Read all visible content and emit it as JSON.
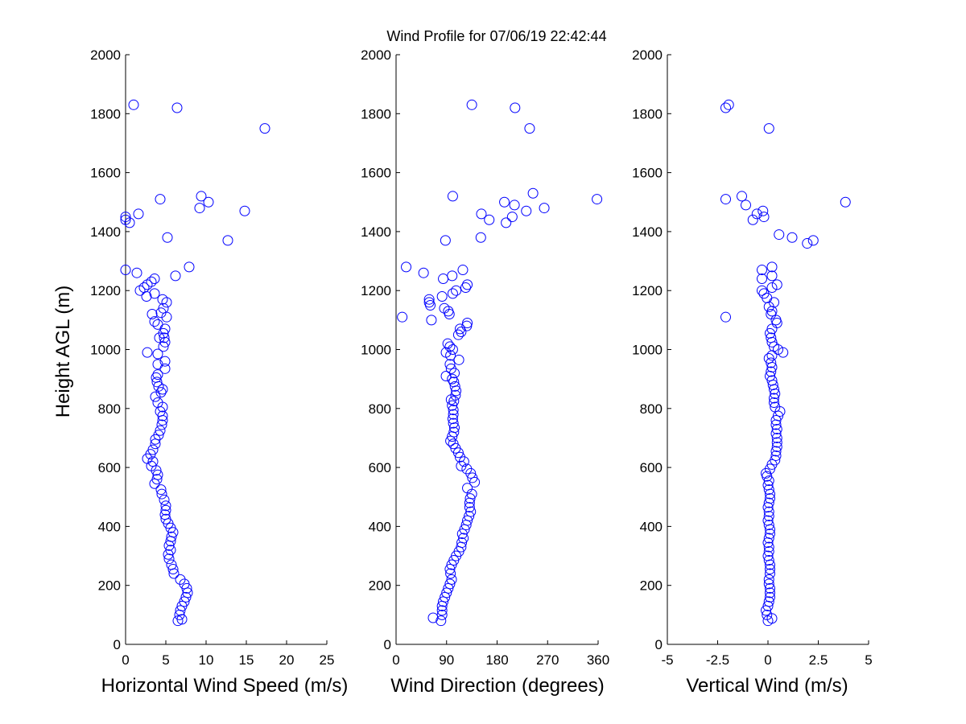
{
  "figure": {
    "title": "Wind Profile for  07/06/19 22:42:44",
    "ylabel": "Height AGL (m)",
    "marker_color": "#0000ff"
  },
  "chart_data": [
    {
      "type": "scatter",
      "xlabel": "Horizontal Wind Speed (m/s)",
      "xlim": [
        0,
        25
      ],
      "ylim": [
        0,
        2000
      ],
      "xticks": [
        0,
        5,
        10,
        15,
        20,
        25
      ],
      "xtick_labels": [
        "0",
        "5",
        "10",
        "15",
        "20",
        "25"
      ],
      "yticks": [
        0,
        200,
        400,
        600,
        800,
        1000,
        1200,
        1400,
        1600,
        1800,
        2000
      ],
      "ytick_labels": [
        "0",
        "200",
        "400",
        "600",
        "800",
        "1000",
        "1200",
        "1400",
        "1600",
        "1800",
        "2000"
      ],
      "grid": false,
      "points": [
        [
          6.5,
          80
        ],
        [
          7.0,
          85
        ],
        [
          6.7,
          100
        ],
        [
          6.8,
          115
        ],
        [
          7.0,
          130
        ],
        [
          7.3,
          145
        ],
        [
          7.5,
          160
        ],
        [
          7.7,
          175
        ],
        [
          7.6,
          190
        ],
        [
          7.3,
          205
        ],
        [
          6.8,
          220
        ],
        [
          6.0,
          240
        ],
        [
          5.9,
          255
        ],
        [
          5.7,
          270
        ],
        [
          5.4,
          290
        ],
        [
          5.3,
          305
        ],
        [
          5.6,
          320
        ],
        [
          5.4,
          335
        ],
        [
          5.6,
          350
        ],
        [
          5.7,
          365
        ],
        [
          5.9,
          380
        ],
        [
          5.6,
          395
        ],
        [
          5.3,
          410
        ],
        [
          5.0,
          425
        ],
        [
          4.9,
          440
        ],
        [
          5.0,
          455
        ],
        [
          5.0,
          470
        ],
        [
          4.8,
          490
        ],
        [
          4.5,
          510
        ],
        [
          4.4,
          525
        ],
        [
          3.6,
          545
        ],
        [
          3.9,
          560
        ],
        [
          4.0,
          575
        ],
        [
          3.8,
          590
        ],
        [
          3.2,
          605
        ],
        [
          3.4,
          620
        ],
        [
          2.7,
          630
        ],
        [
          3.1,
          645
        ],
        [
          3.4,
          660
        ],
        [
          3.7,
          680
        ],
        [
          3.7,
          695
        ],
        [
          4.1,
          710
        ],
        [
          4.3,
          725
        ],
        [
          4.5,
          745
        ],
        [
          4.6,
          760
        ],
        [
          4.6,
          775
        ],
        [
          4.3,
          790
        ],
        [
          4.6,
          805
        ],
        [
          4.0,
          820
        ],
        [
          3.7,
          840
        ],
        [
          4.4,
          855
        ],
        [
          4.6,
          865
        ],
        [
          4.1,
          875
        ],
        [
          3.9,
          890
        ],
        [
          3.8,
          905
        ],
        [
          4.0,
          915
        ],
        [
          4.9,
          935
        ],
        [
          4.0,
          950
        ],
        [
          4.9,
          960
        ],
        [
          4.0,
          985
        ],
        [
          2.7,
          990
        ],
        [
          4.7,
          1010
        ],
        [
          4.9,
          1025
        ],
        [
          4.8,
          1040
        ],
        [
          4.2,
          1040
        ],
        [
          4.7,
          1055
        ],
        [
          4.9,
          1070
        ],
        [
          4.0,
          1085
        ],
        [
          3.6,
          1095
        ],
        [
          5.1,
          1110
        ],
        [
          3.3,
          1120
        ],
        [
          4.4,
          1125
        ],
        [
          4.7,
          1140
        ],
        [
          5.1,
          1160
        ],
        [
          4.6,
          1170
        ],
        [
          2.6,
          1180
        ],
        [
          3.6,
          1190
        ],
        [
          1.8,
          1200
        ],
        [
          2.3,
          1210
        ],
        [
          2.7,
          1220
        ],
        [
          3.2,
          1230
        ],
        [
          3.6,
          1240
        ],
        [
          6.2,
          1250
        ],
        [
          1.4,
          1260
        ],
        [
          0,
          1270
        ],
        [
          7.9,
          1280
        ],
        [
          12.7,
          1370
        ],
        [
          5.2,
          1380
        ],
        [
          0.5,
          1430
        ],
        [
          0,
          1440
        ],
        [
          0,
          1450
        ],
        [
          1.6,
          1460
        ],
        [
          14.8,
          1470
        ],
        [
          9.2,
          1480
        ],
        [
          10.3,
          1500
        ],
        [
          4.3,
          1510
        ],
        [
          9.4,
          1520
        ],
        [
          17.3,
          1750
        ],
        [
          1.0,
          1830
        ],
        [
          6.4,
          1820
        ]
      ]
    },
    {
      "type": "scatter",
      "xlabel": "Wind Direction (degrees)",
      "xlim": [
        0,
        360
      ],
      "ylim": [
        0,
        2000
      ],
      "xticks": [
        0,
        90,
        180,
        270,
        360
      ],
      "xtick_labels": [
        "0",
        "90",
        "180",
        "270",
        "360"
      ],
      "yticks": [
        0,
        200,
        400,
        600,
        800,
        1000,
        1200,
        1400,
        1600,
        1800,
        2000
      ],
      "ytick_labels": [
        "0",
        "200",
        "400",
        "600",
        "800",
        "1000",
        "1200",
        "1400",
        "1600",
        "1800",
        "2000"
      ],
      "grid": false,
      "points": [
        [
          80,
          80
        ],
        [
          66,
          90
        ],
        [
          82,
          100
        ],
        [
          82,
          115
        ],
        [
          82,
          130
        ],
        [
          84,
          145
        ],
        [
          87,
          160
        ],
        [
          90,
          175
        ],
        [
          93,
          190
        ],
        [
          96,
          205
        ],
        [
          99,
          220
        ],
        [
          97,
          240
        ],
        [
          96,
          255
        ],
        [
          99,
          270
        ],
        [
          103,
          285
        ],
        [
          107,
          300
        ],
        [
          112,
          315
        ],
        [
          116,
          330
        ],
        [
          117,
          345
        ],
        [
          120,
          360
        ],
        [
          118,
          375
        ],
        [
          122,
          390
        ],
        [
          125,
          405
        ],
        [
          127,
          420
        ],
        [
          130,
          435
        ],
        [
          133,
          450
        ],
        [
          131,
          465
        ],
        [
          131,
          480
        ],
        [
          132,
          495
        ],
        [
          135,
          510
        ],
        [
          127,
          530
        ],
        [
          140,
          550
        ],
        [
          136,
          565
        ],
        [
          133,
          580
        ],
        [
          126,
          595
        ],
        [
          116,
          605
        ],
        [
          121,
          620
        ],
        [
          114,
          635
        ],
        [
          111,
          650
        ],
        [
          106,
          665
        ],
        [
          102,
          680
        ],
        [
          97,
          690
        ],
        [
          100,
          705
        ],
        [
          103,
          720
        ],
        [
          104,
          735
        ],
        [
          102,
          750
        ],
        [
          101,
          765
        ],
        [
          102,
          780
        ],
        [
          102,
          795
        ],
        [
          100,
          810
        ],
        [
          103,
          825
        ],
        [
          98,
          830
        ],
        [
          106,
          845
        ],
        [
          107,
          860
        ],
        [
          105,
          875
        ],
        [
          103,
          890
        ],
        [
          100,
          900
        ],
        [
          89,
          910
        ],
        [
          104,
          920
        ],
        [
          98,
          935
        ],
        [
          96,
          950
        ],
        [
          112,
          965
        ],
        [
          97,
          980
        ],
        [
          89,
          990
        ],
        [
          101,
          1000
        ],
        [
          96,
          1010
        ],
        [
          92,
          1020
        ],
        [
          111,
          1050
        ],
        [
          116,
          1060
        ],
        [
          114,
          1070
        ],
        [
          126,
          1080
        ],
        [
          127,
          1090
        ],
        [
          63,
          1100
        ],
        [
          11,
          1110
        ],
        [
          95,
          1120
        ],
        [
          93,
          1130
        ],
        [
          86,
          1140
        ],
        [
          61,
          1150
        ],
        [
          59,
          1160
        ],
        [
          59,
          1170
        ],
        [
          82,
          1180
        ],
        [
          101,
          1190
        ],
        [
          107,
          1200
        ],
        [
          124,
          1210
        ],
        [
          127,
          1220
        ],
        [
          84,
          1240
        ],
        [
          100,
          1250
        ],
        [
          49,
          1260
        ],
        [
          119,
          1270
        ],
        [
          18,
          1280
        ],
        [
          88,
          1370
        ],
        [
          151,
          1380
        ],
        [
          166,
          1440
        ],
        [
          152,
          1460
        ],
        [
          232,
          1470
        ],
        [
          264,
          1480
        ],
        [
          211,
          1490
        ],
        [
          193,
          1500
        ],
        [
          358,
          1510
        ],
        [
          101,
          1520
        ],
        [
          244,
          1530
        ],
        [
          207,
          1450
        ],
        [
          196,
          1430
        ],
        [
          238,
          1750
        ],
        [
          212,
          1820
        ],
        [
          135,
          1830
        ]
      ]
    },
    {
      "type": "scatter",
      "xlabel": "Vertical Wind (m/s)",
      "xlim": [
        -5,
        5
      ],
      "ylim": [
        0,
        2000
      ],
      "xticks": [
        -5,
        -2.5,
        0,
        2.5,
        5
      ],
      "xtick_labels": [
        "-5",
        "-2.5",
        "0",
        "2.5",
        "5"
      ],
      "yticks": [
        0,
        200,
        400,
        600,
        800,
        1000,
        1200,
        1400,
        1600,
        1800,
        2000
      ],
      "ytick_labels": [
        "0",
        "200",
        "400",
        "600",
        "800",
        "1000",
        "1200",
        "1400",
        "1600",
        "1800",
        "2000"
      ],
      "grid": false,
      "points": [
        [
          0.0,
          80
        ],
        [
          0.2,
          88
        ],
        [
          -0.05,
          100
        ],
        [
          -0.1,
          115
        ],
        [
          0.0,
          130
        ],
        [
          0.05,
          145
        ],
        [
          0.1,
          160
        ],
        [
          0.1,
          175
        ],
        [
          0.1,
          190
        ],
        [
          0.05,
          205
        ],
        [
          0.05,
          220
        ],
        [
          0.1,
          240
        ],
        [
          0.1,
          255
        ],
        [
          0.1,
          270
        ],
        [
          0.05,
          285
        ],
        [
          0.0,
          300
        ],
        [
          0.05,
          315
        ],
        [
          0.05,
          330
        ],
        [
          0.0,
          345
        ],
        [
          0.05,
          360
        ],
        [
          0.1,
          375
        ],
        [
          0.1,
          390
        ],
        [
          0.05,
          405
        ],
        [
          0.0,
          420
        ],
        [
          0.05,
          435
        ],
        [
          0.05,
          450
        ],
        [
          0.0,
          465
        ],
        [
          0.05,
          480
        ],
        [
          0.1,
          495
        ],
        [
          0.1,
          510
        ],
        [
          0.05,
          525
        ],
        [
          0.0,
          540
        ],
        [
          0.05,
          555
        ],
        [
          -0.05,
          570
        ],
        [
          -0.1,
          580
        ],
        [
          0.1,
          595
        ],
        [
          0.2,
          610
        ],
        [
          0.35,
          625
        ],
        [
          0.4,
          640
        ],
        [
          0.4,
          655
        ],
        [
          0.45,
          670
        ],
        [
          0.45,
          685
        ],
        [
          0.45,
          700
        ],
        [
          0.4,
          715
        ],
        [
          0.45,
          730
        ],
        [
          0.4,
          745
        ],
        [
          0.4,
          760
        ],
        [
          0.5,
          775
        ],
        [
          0.6,
          790
        ],
        [
          0.35,
          805
        ],
        [
          0.3,
          820
        ],
        [
          0.3,
          835
        ],
        [
          0.35,
          850
        ],
        [
          0.3,
          865
        ],
        [
          0.25,
          880
        ],
        [
          0.2,
          895
        ],
        [
          0.1,
          910
        ],
        [
          0.15,
          925
        ],
        [
          0.2,
          940
        ],
        [
          0.15,
          955
        ],
        [
          0.05,
          970
        ],
        [
          0.2,
          980
        ],
        [
          0.75,
          990
        ],
        [
          0.5,
          1000
        ],
        [
          0.3,
          1010
        ],
        [
          0.2,
          1025
        ],
        [
          0.15,
          1040
        ],
        [
          0.1,
          1055
        ],
        [
          0.2,
          1070
        ],
        [
          0.45,
          1090
        ],
        [
          0.4,
          1100
        ],
        [
          -2.1,
          1110
        ],
        [
          0.15,
          1120
        ],
        [
          0.2,
          1130
        ],
        [
          0.05,
          1145
        ],
        [
          0.3,
          1160
        ],
        [
          -0.05,
          1175
        ],
        [
          -0.2,
          1190
        ],
        [
          -0.3,
          1200
        ],
        [
          0.45,
          1220
        ],
        [
          0.2,
          1210
        ],
        [
          -0.3,
          1240
        ],
        [
          0.2,
          1250
        ],
        [
          -0.3,
          1270
        ],
        [
          0.2,
          1280
        ],
        [
          2.25,
          1370
        ],
        [
          1.95,
          1360
        ],
        [
          1.2,
          1380
        ],
        [
          0.55,
          1390
        ],
        [
          -0.75,
          1440
        ],
        [
          -0.2,
          1450
        ],
        [
          -0.25,
          1470
        ],
        [
          -0.55,
          1460
        ],
        [
          -1.3,
          1520
        ],
        [
          -2.1,
          1510
        ],
        [
          -1.1,
          1490
        ],
        [
          3.85,
          1500
        ],
        [
          0.05,
          1750
        ],
        [
          -2.1,
          1820
        ],
        [
          -1.95,
          1830
        ]
      ]
    }
  ]
}
